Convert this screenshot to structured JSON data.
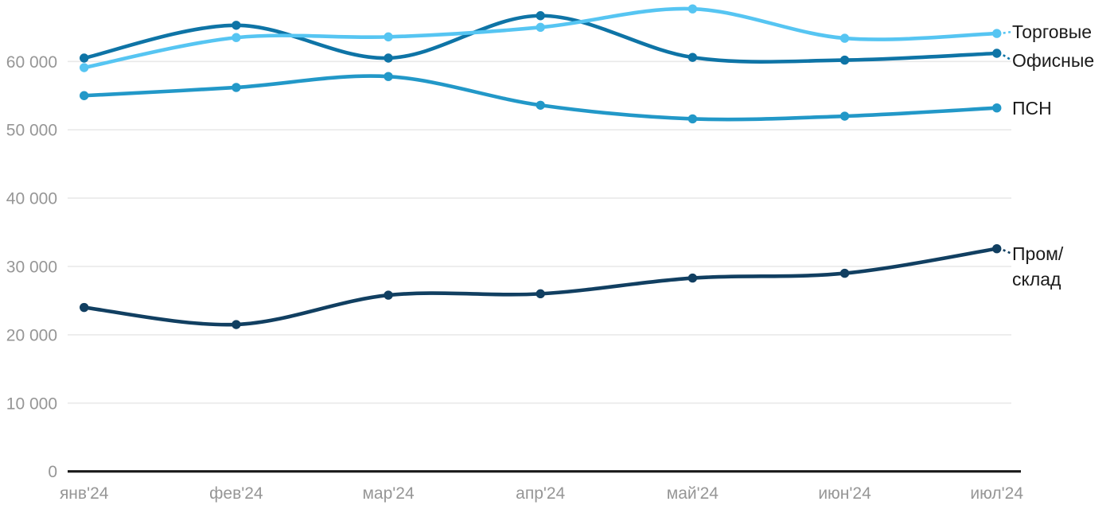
{
  "chart_data": {
    "type": "line",
    "title": "",
    "xlabel": "",
    "ylabel": "",
    "x": [
      "янв'24",
      "фев'24",
      "мар'24",
      "апр'24",
      "май'24",
      "июн'24",
      "июл'24"
    ],
    "y_ticks": [
      0,
      10000,
      20000,
      30000,
      40000,
      50000,
      60000
    ],
    "y_tick_labels": [
      "0",
      "10 000",
      "20 000",
      "30 000",
      "40 000",
      "50 000",
      "60 000"
    ],
    "ylim": [
      0,
      69000
    ],
    "grid": "horizontal-light-gray",
    "legend_position": "right-of-line-ends",
    "series": [
      {
        "name": "Торговые",
        "color": "#56c5f2",
        "values": [
          59100,
          63500,
          63600,
          65000,
          67700,
          63400,
          64100
        ]
      },
      {
        "name": "Офисные",
        "color": "#0e74a6",
        "values": [
          60500,
          65300,
          60500,
          66700,
          60600,
          60200,
          61200
        ]
      },
      {
        "name": "ПСН",
        "color": "#2298c8",
        "values": [
          55000,
          56200,
          57800,
          53600,
          51600,
          52000,
          53200
        ]
      },
      {
        "name": "Пром/\nсклад",
        "color": "#113f61",
        "values": [
          24000,
          21500,
          25800,
          26000,
          28300,
          29000,
          32600
        ]
      }
    ]
  },
  "colors": {
    "background": "#ffffff",
    "gridline": "#e9e9e9",
    "axis": "#1a1a1a",
    "tick_text": "#969696",
    "legend_text": "#1b1b1b"
  }
}
